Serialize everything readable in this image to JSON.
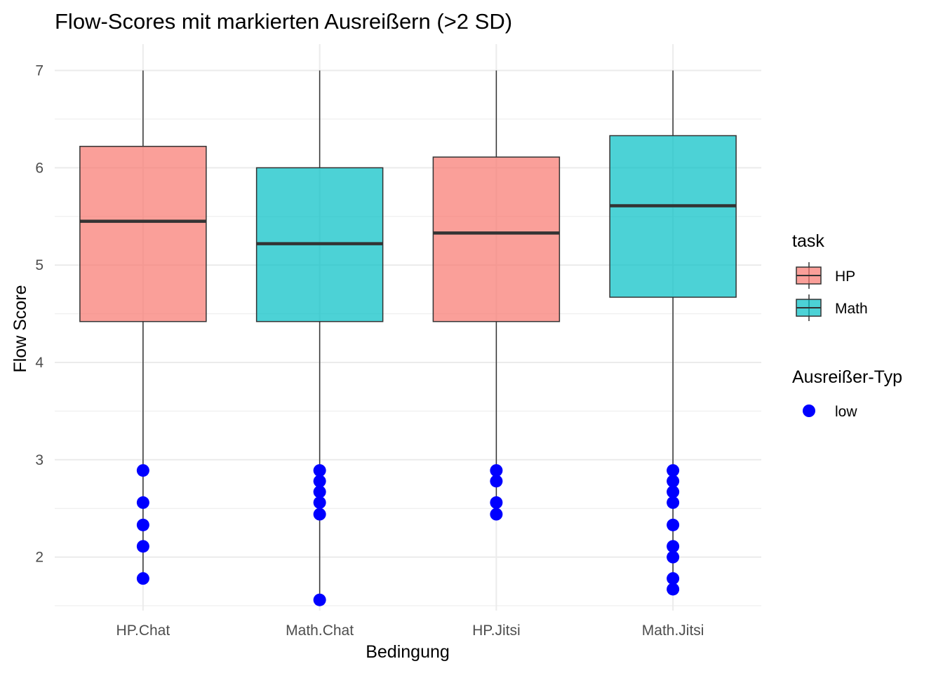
{
  "chart_data": {
    "type": "box",
    "title": "Flow-Scores mit markierten Ausreißern (>2 SD)",
    "xlabel": "Bedingung",
    "ylabel": "Flow Score",
    "categories": [
      "HP.Chat",
      "Math.Chat",
      "HP.Jitsi",
      "Math.Jitsi"
    ],
    "ylim": [
      1.45,
      7.27
    ],
    "yticks": [
      2,
      3,
      4,
      5,
      6,
      7
    ],
    "grid": true,
    "boxes": [
      {
        "category": "HP.Chat",
        "task": "HP",
        "whisker_low": 1.78,
        "q1": 4.42,
        "median": 5.45,
        "q3": 6.22,
        "whisker_high": 7.0
      },
      {
        "category": "Math.Chat",
        "task": "Math",
        "whisker_low": 1.56,
        "q1": 4.42,
        "median": 5.22,
        "q3": 6.0,
        "whisker_high": 7.0
      },
      {
        "category": "HP.Jitsi",
        "task": "HP",
        "whisker_low": 2.44,
        "q1": 4.42,
        "median": 5.33,
        "q3": 6.11,
        "whisker_high": 7.0
      },
      {
        "category": "Math.Jitsi",
        "task": "Math",
        "whisker_low": 1.67,
        "q1": 4.67,
        "median": 5.61,
        "q3": 6.33,
        "whisker_high": 7.0
      }
    ],
    "outliers": [
      {
        "category": "HP.Chat",
        "values": [
          2.89,
          2.56,
          2.33,
          2.11,
          1.78
        ]
      },
      {
        "category": "Math.Chat",
        "values": [
          2.89,
          2.78,
          2.67,
          2.56,
          2.44,
          1.56
        ]
      },
      {
        "category": "HP.Jitsi",
        "values": [
          2.89,
          2.78,
          2.56,
          2.44
        ]
      },
      {
        "category": "Math.Jitsi",
        "values": [
          2.89,
          2.78,
          2.67,
          2.56,
          2.33,
          2.11,
          2.0,
          1.78,
          1.67
        ]
      }
    ],
    "legend": {
      "placement": "right",
      "fill_title": "task",
      "fill_items": [
        {
          "label": "HP",
          "color": "#F8766D"
        },
        {
          "label": "Math",
          "color": "#00BFC4"
        }
      ],
      "point_title": "Ausreißer-Typ",
      "point_items": [
        {
          "label": "low",
          "color": "#0000FF"
        }
      ]
    },
    "colors": {
      "HP": "#F8766D",
      "Math": "#00BFC4",
      "outlier": "#0000FF",
      "box_outline": "#333333",
      "grid": "#ebebeb"
    }
  }
}
